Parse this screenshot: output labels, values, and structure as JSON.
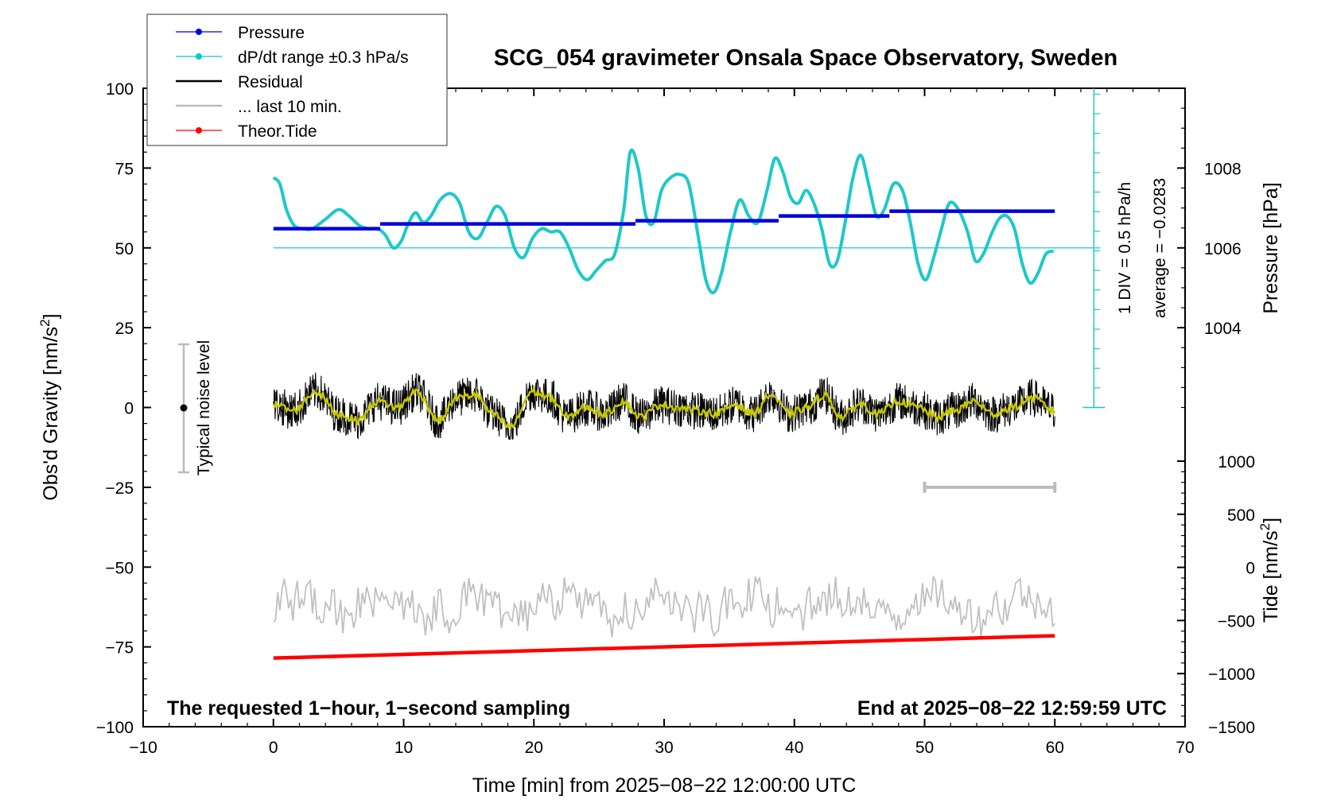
{
  "chart_data": {
    "type": "line",
    "title": "SCG_054 gravimeter Onsala Space Observatory, Sweden",
    "xlabel": "Time [min] from 2025−08−22 12:00:00 UTC",
    "ylabel": "Obs'd Gravity [nm/s",
    "ylabel_sup": "2",
    "ylabel_end": "]",
    "y2label": "Pressure [hPa]",
    "y3label": "Tide [nm/s",
    "y3label_sup": "2",
    "y3label_end": "]",
    "xlim": [
      -10,
      70
    ],
    "ylim": [
      -100,
      100
    ],
    "x_ticks": [
      -10,
      0,
      10,
      20,
      30,
      40,
      50,
      60,
      70
    ],
    "x_tick_labels": [
      "−10",
      "0",
      "10",
      "20",
      "30",
      "40",
      "50",
      "60",
      "70"
    ],
    "y_ticks": [
      -100,
      -75,
      -50,
      -25,
      0,
      25,
      50,
      75,
      100
    ],
    "y_tick_labels": [
      "−100",
      "−75",
      "−50",
      "−25",
      "0",
      "25",
      "50",
      "75",
      "100"
    ],
    "pressure_ticks": [
      1004,
      1006,
      1008
    ],
    "pressure_tick_labels": [
      "1004",
      "1006",
      "1008"
    ],
    "tide_ticks": [
      1000,
      500,
      0,
      -500,
      -1000,
      -1500
    ],
    "tide_tick_labels": [
      "1000",
      "500",
      "0",
      "−500",
      "−1000",
      "−1500"
    ],
    "legend_position": "top-left",
    "legend": [
      {
        "label": "Pressure",
        "color": "#0000ee",
        "marker": true
      },
      {
        "label": "dP/dt range ±0.3 hPa/s",
        "color": "#00cccc",
        "marker": true
      },
      {
        "label": "Residual",
        "color": "#000000",
        "marker": false
      },
      {
        "label": "... last 10 min.",
        "color": "#bbbbbb",
        "marker": false
      },
      {
        "label": "Theor.Tide",
        "color": "#ff0000",
        "marker": true
      }
    ],
    "noise_label": "Typical noise level",
    "noise_range": [
      -20,
      20
    ],
    "scale_label": "1 DIV = 0.5 hPa/h",
    "average_label": "average = −0.0283",
    "footer_left": "The requested 1−hour, 1−second sampling",
    "footer_right": "End at 2025−08−22 12:59:59 UTC",
    "series": [
      {
        "name": "Pressure",
        "color": "#0000dd",
        "segments": [
          {
            "x": [
              0,
              8.2
            ],
            "y": 56
          },
          {
            "x": 8.2,
            "y": 57.5,
            "x_end": 27.8
          },
          {
            "x": 27.8,
            "y": 58.5,
            "x_end": 38.8
          },
          {
            "x": 38.8,
            "y": 60,
            "x_end": 47.3
          },
          {
            "x": 47.3,
            "y": 61.5,
            "x_end": 60
          }
        ]
      },
      {
        "name": "dP/dt",
        "color": "#1ec8c8",
        "x": [
          0,
          0.5,
          1,
          1.6,
          2.3,
          3,
          4,
          5,
          5.8,
          6.6,
          7.3,
          8,
          8.6,
          9.2,
          9.8,
          10.3,
          10.9,
          11.5,
          12.1,
          12.8,
          13.6,
          14.3,
          15,
          15.7,
          16.4,
          17.1,
          17.8,
          18.5,
          19.2,
          19.9,
          20.6,
          21.3,
          22,
          22.7,
          23.4,
          24.1,
          24.8,
          25.5,
          26.2,
          26.9,
          27.4,
          28,
          28.6,
          29.2,
          29.8,
          30.5,
          31.2,
          31.9,
          32.6,
          33.2,
          33.8,
          34.4,
          35.1,
          35.8,
          36.5,
          37.2,
          37.9,
          38.5,
          39.1,
          39.7,
          40.3,
          40.9,
          41.5,
          42.1,
          42.7,
          43.3,
          43.9,
          44.5,
          45.1,
          45.7,
          46.3,
          46.9,
          47.6,
          48.3,
          48.9,
          49.5,
          50.1,
          50.7,
          51.3,
          51.9,
          52.6,
          53.3,
          53.9,
          54.5,
          55.1,
          55.7,
          56.3,
          56.9,
          57.5,
          58.1,
          58.7,
          59.3,
          59.9
        ],
        "y": [
          72,
          70,
          62,
          57,
          56,
          56,
          59,
          62,
          60,
          57,
          56,
          56,
          54,
          50,
          52,
          57,
          61,
          58,
          60,
          65,
          67,
          64,
          55,
          53,
          58,
          63,
          60,
          50,
          47,
          53,
          56,
          55,
          55,
          50,
          43,
          40,
          43,
          46,
          48,
          62,
          80,
          75,
          60,
          58,
          68,
          72,
          73,
          70,
          54,
          40,
          36,
          42,
          55,
          65,
          60,
          58,
          68,
          78,
          74,
          66,
          64,
          68,
          64,
          56,
          45,
          46,
          58,
          72,
          79,
          70,
          60,
          62,
          70,
          68,
          58,
          45,
          40,
          47,
          56,
          64,
          62,
          55,
          46,
          48,
          54,
          59,
          60,
          56,
          45,
          39,
          42,
          48,
          49
        ]
      },
      {
        "name": "Residual",
        "color": "#000000",
        "x_range": [
          0,
          60
        ],
        "amplitude_range": [
          -10,
          13
        ]
      },
      {
        "name": "Residual smoothed",
        "color": "#c8c800",
        "x": [
          0,
          1.5,
          3.3,
          5,
          6.5,
          8,
          9.5,
          11,
          12.7,
          14.1,
          15.5,
          16.8,
          18.2,
          19.9,
          21.3,
          22.5,
          24,
          25.5,
          26.8,
          28.2,
          29.8,
          31,
          32.5,
          34,
          35.5,
          36.8,
          38.2,
          39.6,
          41,
          42.3,
          43.6,
          45,
          46.5,
          48,
          49.5,
          51,
          52.3,
          53.8,
          55.2,
          56.8,
          58.2,
          60
        ],
        "y": [
          1,
          -1,
          5,
          -2,
          -4,
          2,
          0,
          5,
          -4,
          3,
          4,
          -2,
          -6,
          5,
          3,
          -3,
          0,
          -2,
          2,
          -3,
          1,
          0,
          -1,
          -2,
          1,
          -2,
          4,
          -2,
          0,
          4,
          -3,
          1,
          -2,
          2,
          0,
          -3,
          -1,
          2,
          -2,
          0,
          3,
          -1
        ]
      },
      {
        "name": "... last 10 min.",
        "color": "#c0c0c0",
        "x_range": [
          0,
          60
        ],
        "y_range": [
          -72,
          -53
        ],
        "center": -62
      },
      {
        "name": "Theor.Tide",
        "color": "#ff0000",
        "x": [
          0,
          60
        ],
        "y": [
          -78.5,
          -71.5
        ]
      }
    ],
    "last10_bar_x": [
      50,
      60
    ],
    "last10_bar_y": -25
  }
}
